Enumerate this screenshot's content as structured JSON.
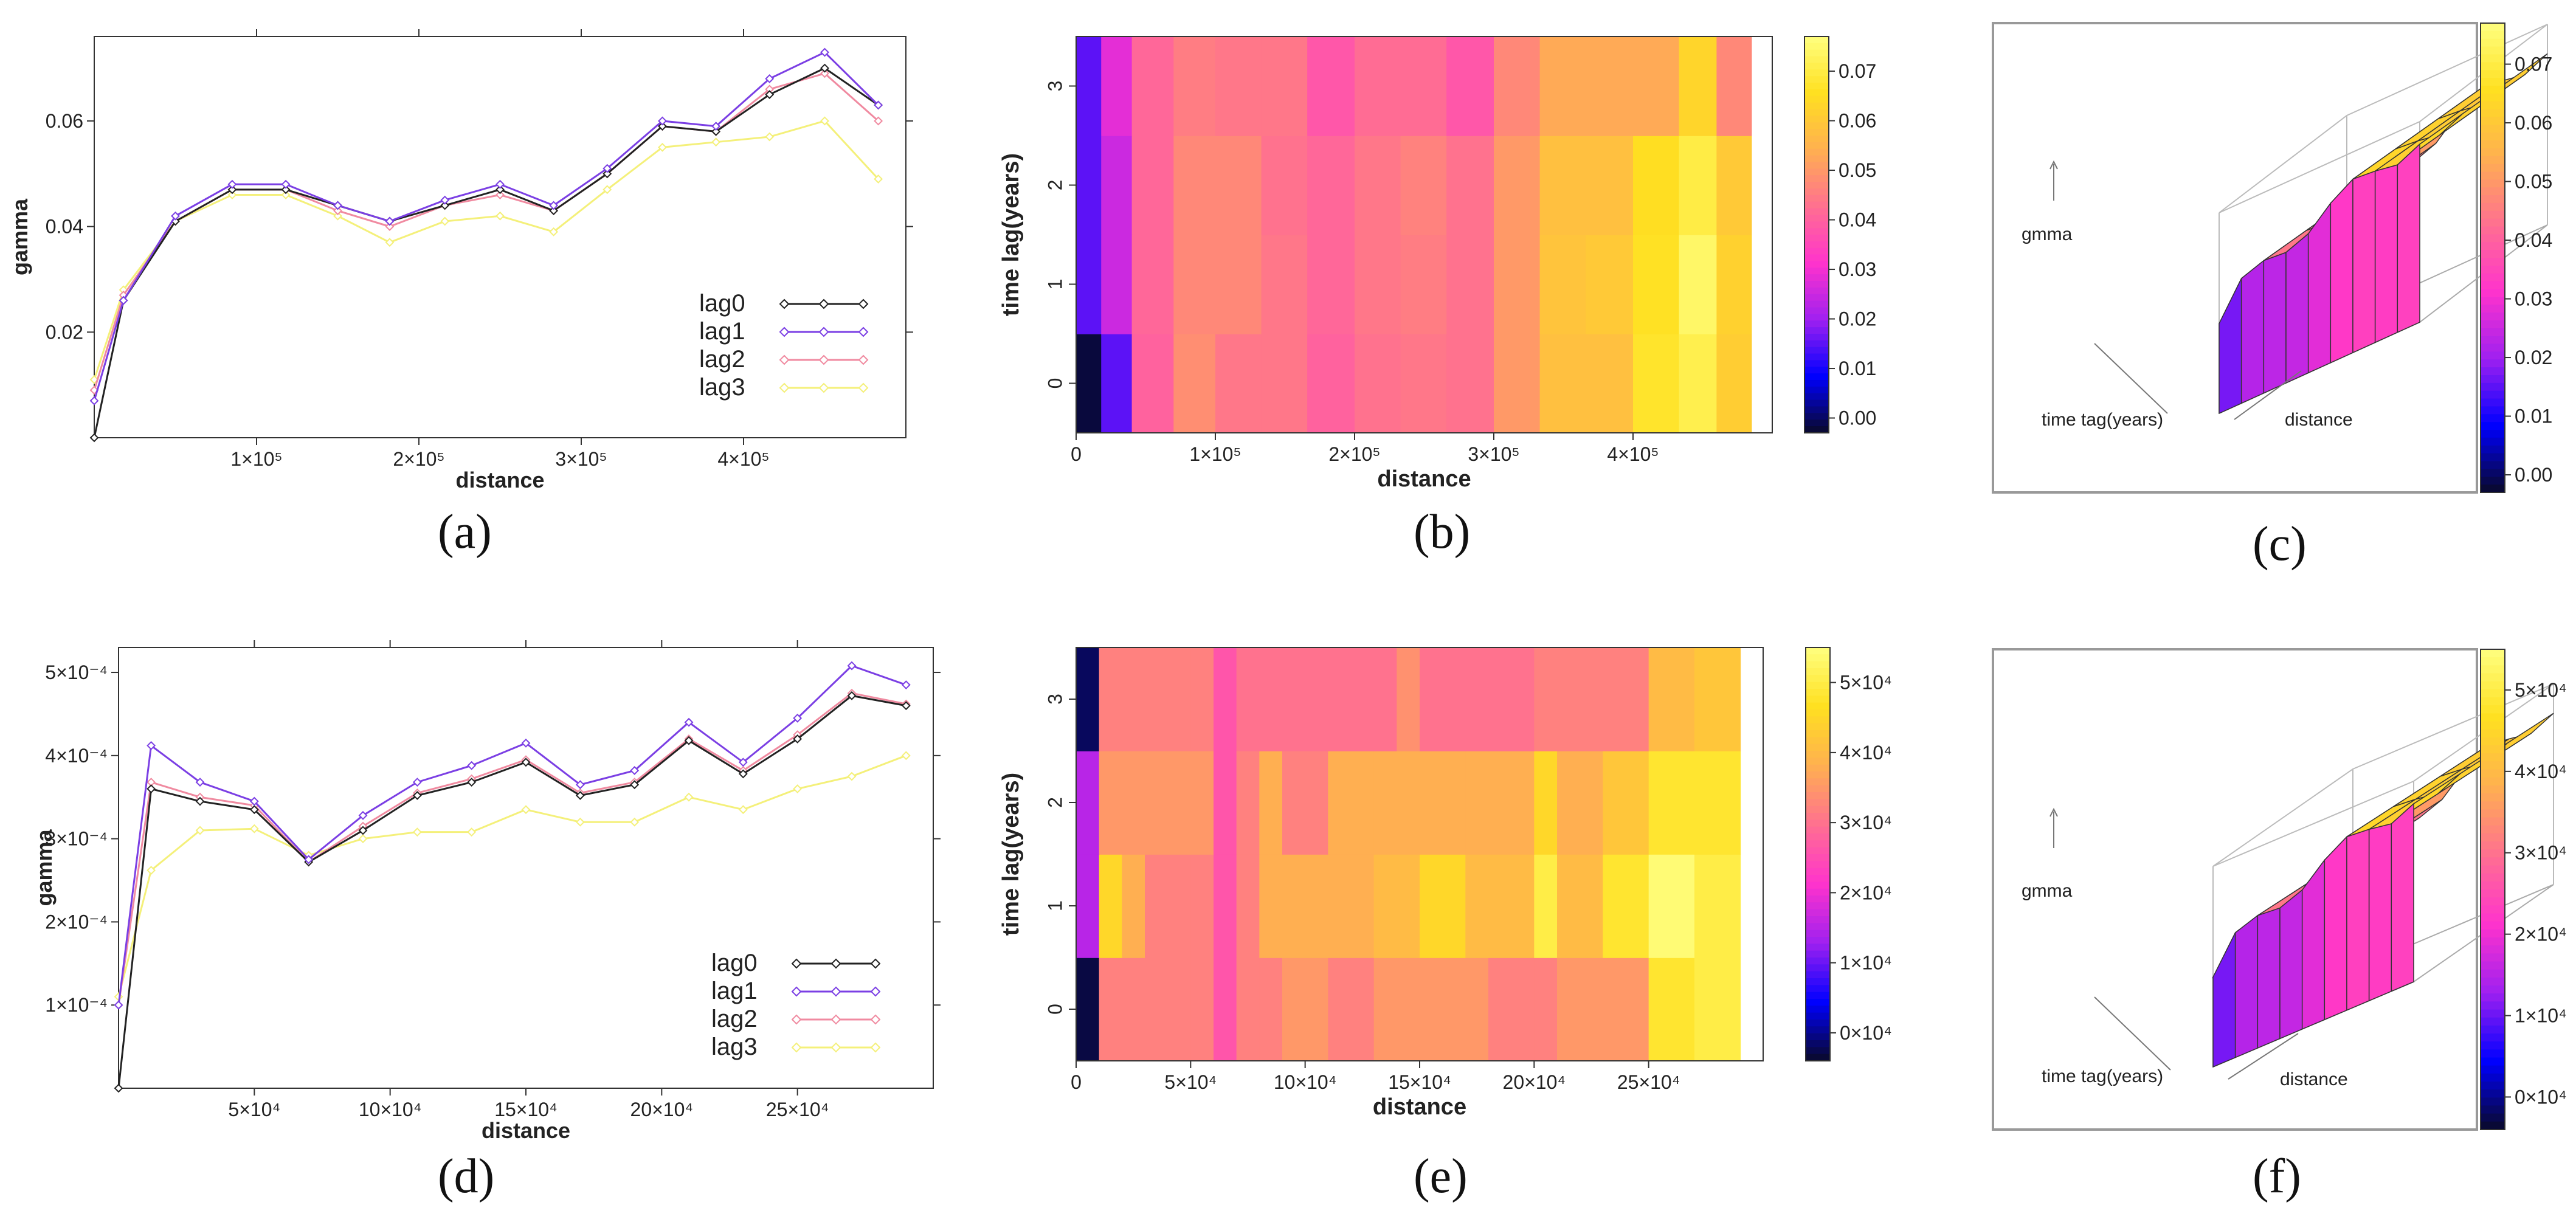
{
  "captions": {
    "a": {
      "letter": "a"
    },
    "b": {
      "letter": "b"
    },
    "c": {
      "letter": "c"
    },
    "d": {
      "letter": "d"
    },
    "e": {
      "letter": "e"
    },
    "f": {
      "letter": "f"
    }
  },
  "palette": {
    "lag0": "#222222",
    "lag1": "#7b3fe4",
    "lag2": "#f08aa0",
    "lag3": "#f4f07a",
    "heat_stops": [
      "#0a0a2a",
      "#0000ff",
      "#a020f0",
      "#ff33cc",
      "#ff7090",
      "#ffb050",
      "#ffe020",
      "#ffff80"
    ]
  },
  "chart_data": [
    {
      "id": "a",
      "type": "line",
      "title": "",
      "xlabel": "distance",
      "ylabel": "gamma",
      "xlim": [
        0,
        500000
      ],
      "ylim": [
        0,
        0.076
      ],
      "xticks": [
        100000,
        200000,
        300000,
        400000
      ],
      "xtick_labels": [
        "1×10⁵",
        "2×10⁵",
        "3×10⁵",
        "4×10⁵"
      ],
      "yticks": [
        0.02,
        0.04,
        0.06
      ],
      "ytick_labels": [
        "0.02",
        "0.04",
        "0.06"
      ],
      "x": [
        0,
        18000,
        50000,
        85000,
        118000,
        150000,
        182000,
        216000,
        250000,
        283000,
        316000,
        350000,
        383000,
        416000,
        450000,
        483000
      ],
      "series": [
        {
          "name": "lag0",
          "values": [
            0.0,
            0.026,
            0.041,
            0.047,
            0.047,
            0.044,
            0.041,
            0.044,
            0.047,
            0.043,
            0.05,
            0.059,
            0.058,
            0.065,
            0.07,
            0.063
          ]
        },
        {
          "name": "lag1",
          "values": [
            0.007,
            0.026,
            0.042,
            0.048,
            0.048,
            0.044,
            0.041,
            0.045,
            0.048,
            0.044,
            0.051,
            0.06,
            0.059,
            0.068,
            0.073,
            0.063
          ]
        },
        {
          "name": "lag2",
          "values": [
            0.009,
            0.027,
            0.041,
            0.047,
            0.047,
            0.043,
            0.04,
            0.044,
            0.046,
            0.043,
            0.05,
            0.059,
            0.058,
            0.066,
            0.069,
            0.06
          ]
        },
        {
          "name": "lag3",
          "values": [
            0.011,
            0.028,
            0.041,
            0.046,
            0.046,
            0.042,
            0.037,
            0.041,
            0.042,
            0.039,
            0.047,
            0.055,
            0.056,
            0.057,
            0.06,
            0.049
          ]
        }
      ],
      "legend": [
        "lag0",
        "lag1",
        "lag2",
        "lag3"
      ],
      "legend_position": "bottom-right"
    },
    {
      "id": "b",
      "type": "heatmap",
      "xlabel": "distance",
      "ylabel": "time lag(years)",
      "xtick_labels": [
        "0",
        "1×10⁵",
        "2×10⁵",
        "3×10⁵",
        "4×10⁵"
      ],
      "xticks": [
        0,
        100000,
        200000,
        300000,
        400000
      ],
      "xlim": [
        0,
        500000
      ],
      "ytick_labels": [
        "0",
        "1",
        "2",
        "3"
      ],
      "colorbar_ticks": [
        0.0,
        0.01,
        0.02,
        0.03,
        0.04,
        0.05,
        0.06,
        0.07
      ],
      "colorbar_labels": [
        "0.00",
        "0.01",
        "0.02",
        "0.03",
        "0.04",
        "0.05",
        "0.06",
        "0.07"
      ],
      "zlim": [
        -0.003,
        0.077
      ],
      "col_edges": [
        0,
        18000,
        40000,
        70000,
        100000,
        133000,
        166000,
        200000,
        233000,
        266000,
        300000,
        333000,
        366000,
        400000,
        433000,
        460000,
        485000
      ],
      "rows": [
        [
          -0.002,
          0.015,
          0.04,
          0.048,
          0.044,
          0.044,
          0.04,
          0.043,
          0.044,
          0.043,
          0.05,
          0.058,
          0.058,
          0.067,
          0.071,
          0.061
        ],
        [
          0.015,
          0.025,
          0.041,
          0.047,
          0.047,
          0.044,
          0.041,
          0.044,
          0.045,
          0.043,
          0.05,
          0.059,
          0.06,
          0.066,
          0.074,
          0.062
        ],
        [
          0.015,
          0.025,
          0.041,
          0.047,
          0.047,
          0.043,
          0.041,
          0.044,
          0.046,
          0.043,
          0.05,
          0.058,
          0.058,
          0.065,
          0.07,
          0.06
        ],
        [
          0.015,
          0.028,
          0.041,
          0.045,
          0.044,
          0.044,
          0.038,
          0.042,
          0.042,
          0.038,
          0.047,
          0.053,
          0.053,
          0.053,
          0.063,
          0.047
        ]
      ]
    },
    {
      "id": "c",
      "type": "surface3d",
      "zlabel": "gmma",
      "ylabel": "time tag(years)",
      "xlabel": "distance",
      "colorbar_ticks": [
        0.0,
        0.01,
        0.02,
        0.03,
        0.04,
        0.05,
        0.06,
        0.07
      ],
      "colorbar_labels": [
        "0.00",
        "0.01",
        "0.02",
        "0.03",
        "0.04",
        "0.05",
        "0.06",
        "0.07"
      ],
      "zlim": [
        -0.003,
        0.077
      ]
    },
    {
      "id": "d",
      "type": "line",
      "title": "",
      "xlabel": "distance",
      "ylabel": "gamma",
      "xlim": [
        0,
        300000
      ],
      "ylim": [
        0,
        0.00053
      ],
      "xticks": [
        50000,
        100000,
        150000,
        200000,
        250000
      ],
      "xtick_labels": [
        "5×10⁴",
        "10×10⁴",
        "15×10⁴",
        "20×10⁴",
        "25×10⁴"
      ],
      "yticks": [
        0.0001,
        0.0002,
        0.0003,
        0.0004,
        0.0005
      ],
      "ytick_labels": [
        "1×10⁻⁴",
        "2×10⁻⁴",
        "3×10⁻⁴",
        "4×10⁻⁴",
        "5×10⁻⁴"
      ],
      "x": [
        0,
        12000,
        30000,
        50000,
        70000,
        90000,
        110000,
        130000,
        150000,
        170000,
        190000,
        210000,
        230000,
        250000,
        270000,
        290000
      ],
      "series": [
        {
          "name": "lag0",
          "values": [
            0.0,
            0.00036,
            0.000345,
            0.000335,
            0.000272,
            0.00031,
            0.000352,
            0.000368,
            0.000392,
            0.000352,
            0.000365,
            0.000418,
            0.000378,
            0.00042,
            0.000472,
            0.00046
          ]
        },
        {
          "name": "lag1",
          "values": [
            0.0001,
            0.000412,
            0.000368,
            0.000345,
            0.000275,
            0.000328,
            0.000368,
            0.000388,
            0.000415,
            0.000365,
            0.000382,
            0.00044,
            0.000392,
            0.000445,
            0.000508,
            0.000485
          ]
        },
        {
          "name": "lag2",
          "values": [
            0.0001,
            0.000368,
            0.00035,
            0.00034,
            0.000272,
            0.000315,
            0.000355,
            0.000372,
            0.000395,
            0.000355,
            0.000368,
            0.00042,
            0.000382,
            0.000425,
            0.000475,
            0.000462
          ]
        },
        {
          "name": "lag3",
          "values": [
            0.00011,
            0.000262,
            0.00031,
            0.000312,
            0.00028,
            0.0003,
            0.000308,
            0.000308,
            0.000335,
            0.00032,
            0.00032,
            0.00035,
            0.000335,
            0.00036,
            0.000375,
            0.0004
          ]
        }
      ],
      "legend": [
        "lag0",
        "lag1",
        "lag2",
        "lag3"
      ],
      "legend_position": "bottom-right"
    },
    {
      "id": "e",
      "type": "heatmap",
      "xlabel": "distance",
      "ylabel": "time lag(years)",
      "xtick_labels": [
        "0",
        "5×10⁴",
        "10×10⁴",
        "15×10⁴",
        "20×10⁴",
        "25×10⁴"
      ],
      "xticks": [
        0,
        50000,
        100000,
        150000,
        200000,
        250000
      ],
      "xlim": [
        0,
        300000
      ],
      "ytick_labels": [
        "0",
        "1",
        "2",
        "3"
      ],
      "colorbar_ticks": [
        0,
        10000,
        20000,
        30000,
        40000,
        50000
      ],
      "colorbar_labels": [
        "0×10⁴",
        "1×10⁴",
        "2×10⁴",
        "3×10⁴",
        "4×10⁴",
        "5×10⁴"
      ],
      "zlim": [
        -4000,
        55000
      ],
      "col_edges": [
        0,
        10000,
        20000,
        30000,
        50000,
        60000,
        70000,
        80000,
        90000,
        110000,
        130000,
        140000,
        150000,
        170000,
        180000,
        200000,
        210000,
        230000,
        250000,
        270000,
        290000
      ],
      "rows": [
        [
          -3000,
          32000,
          32000,
          32000,
          32000,
          26000,
          32000,
          32000,
          35000,
          32000,
          35000,
          35000,
          35000,
          35000,
          32000,
          32000,
          35000,
          35000,
          48000,
          50000
        ],
        [
          15000,
          45000,
          38000,
          32000,
          32000,
          26000,
          32000,
          38000,
          38000,
          38000,
          40000,
          40000,
          45000,
          40000,
          40000,
          50000,
          40000,
          48000,
          54000,
          50000
        ],
        [
          15000,
          35000,
          35000,
          35000,
          35000,
          26000,
          32000,
          38000,
          32000,
          38000,
          38000,
          38000,
          38000,
          38000,
          38000,
          45000,
          38000,
          42000,
          48000,
          48000
        ],
        [
          -2000,
          32000,
          32000,
          32000,
          32000,
          26000,
          30000,
          30000,
          30000,
          30000,
          30000,
          34000,
          30000,
          30000,
          30000,
          32000,
          32000,
          32000,
          40000,
          42000
        ]
      ]
    },
    {
      "id": "f",
      "type": "surface3d",
      "zlabel": "gmma",
      "ylabel": "time tag(years)",
      "xlabel": "distance",
      "colorbar_ticks": [
        0,
        10000,
        20000,
        30000,
        40000,
        50000
      ],
      "colorbar_labels": [
        "0×10⁴",
        "1×10⁴",
        "2×10⁴",
        "3×10⁴",
        "4×10⁴",
        "5×10⁴"
      ],
      "zlim": [
        -4000,
        55000
      ]
    }
  ]
}
